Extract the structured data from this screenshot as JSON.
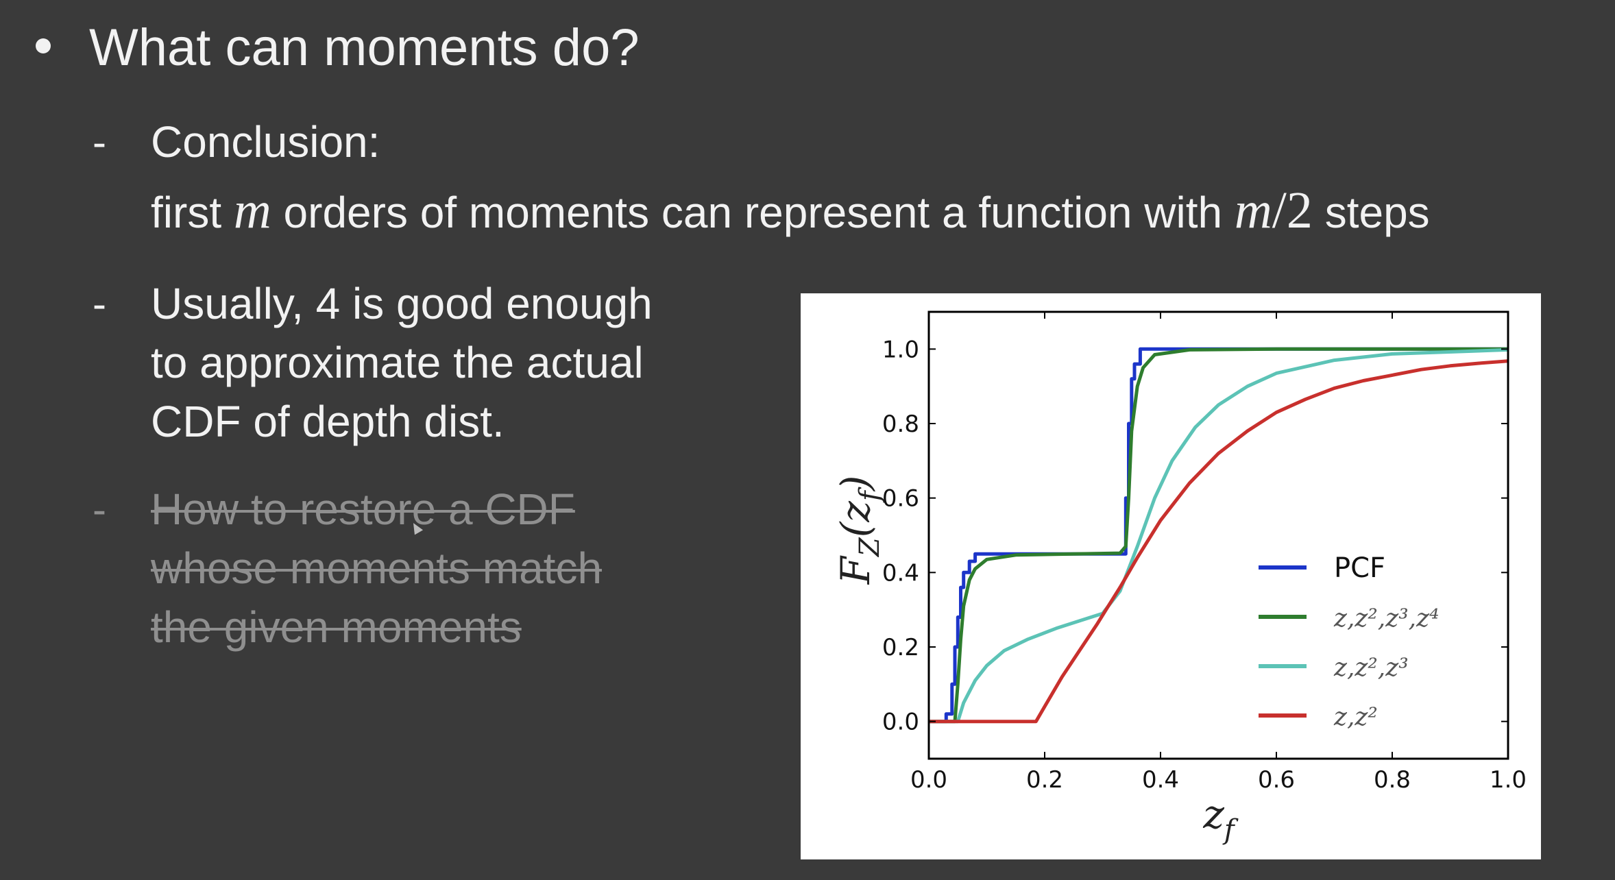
{
  "slide": {
    "title": "What can moments do?",
    "items": [
      {
        "dash": "-",
        "line1": "Conclusion:",
        "line2_parts": [
          "first ",
          "m",
          " orders of moments can represent a function with ",
          "m",
          "/",
          "2",
          " steps"
        ]
      },
      {
        "dash": "-",
        "lines": [
          "Usually, 4 is good enough",
          "to approximate the actual",
          "CDF of depth dist."
        ]
      },
      {
        "dash": "-",
        "struck": true,
        "lines": [
          "How to restore a CDF",
          "whose moments match",
          "the given moments"
        ]
      }
    ]
  },
  "chart_data": {
    "type": "line",
    "xlabel": "z_f",
    "ylabel": "F_Z(z_f)",
    "xlim": [
      0.0,
      1.0
    ],
    "ylim": [
      -0.1,
      1.1
    ],
    "xticks": [
      "0.0",
      "0.2",
      "0.4",
      "0.6",
      "0.8",
      "1.0"
    ],
    "yticks": [
      "0.0",
      "0.2",
      "0.4",
      "0.6",
      "0.8",
      "1.0"
    ],
    "legend_position": "lower-right",
    "series": [
      {
        "name": "PCF",
        "color": "#1c35c9",
        "points": [
          [
            0.0,
            0.0
          ],
          [
            0.03,
            0.0
          ],
          [
            0.03,
            0.02
          ],
          [
            0.04,
            0.02
          ],
          [
            0.04,
            0.1
          ],
          [
            0.045,
            0.1
          ],
          [
            0.045,
            0.2
          ],
          [
            0.05,
            0.2
          ],
          [
            0.05,
            0.28
          ],
          [
            0.055,
            0.28
          ],
          [
            0.055,
            0.36
          ],
          [
            0.06,
            0.36
          ],
          [
            0.06,
            0.4
          ],
          [
            0.07,
            0.4
          ],
          [
            0.07,
            0.43
          ],
          [
            0.08,
            0.43
          ],
          [
            0.08,
            0.45
          ],
          [
            0.34,
            0.45
          ],
          [
            0.34,
            0.6
          ],
          [
            0.345,
            0.6
          ],
          [
            0.345,
            0.8
          ],
          [
            0.35,
            0.8
          ],
          [
            0.35,
            0.92
          ],
          [
            0.355,
            0.92
          ],
          [
            0.355,
            0.96
          ],
          [
            0.365,
            0.96
          ],
          [
            0.365,
            1.0
          ],
          [
            1.0,
            1.0
          ]
        ]
      },
      {
        "name": "z,z²,z³,z⁴",
        "color": "#2e7d2e",
        "points": [
          [
            0.0,
            0.0
          ],
          [
            0.045,
            0.0
          ],
          [
            0.05,
            0.1
          ],
          [
            0.055,
            0.22
          ],
          [
            0.06,
            0.31
          ],
          [
            0.07,
            0.38
          ],
          [
            0.08,
            0.41
          ],
          [
            0.1,
            0.435
          ],
          [
            0.15,
            0.447
          ],
          [
            0.25,
            0.45
          ],
          [
            0.33,
            0.452
          ],
          [
            0.34,
            0.47
          ],
          [
            0.345,
            0.6
          ],
          [
            0.35,
            0.78
          ],
          [
            0.36,
            0.9
          ],
          [
            0.37,
            0.95
          ],
          [
            0.39,
            0.985
          ],
          [
            0.45,
            0.998
          ],
          [
            0.6,
            1.0
          ],
          [
            1.0,
            1.0
          ]
        ]
      },
      {
        "name": "z,z²,z³",
        "color": "#5cc3b6",
        "points": [
          [
            0.0,
            0.0
          ],
          [
            0.05,
            0.0
          ],
          [
            0.06,
            0.05
          ],
          [
            0.08,
            0.11
          ],
          [
            0.1,
            0.15
          ],
          [
            0.13,
            0.19
          ],
          [
            0.17,
            0.22
          ],
          [
            0.22,
            0.25
          ],
          [
            0.28,
            0.28
          ],
          [
            0.3,
            0.29
          ],
          [
            0.33,
            0.35
          ],
          [
            0.36,
            0.47
          ],
          [
            0.39,
            0.6
          ],
          [
            0.42,
            0.7
          ],
          [
            0.46,
            0.79
          ],
          [
            0.5,
            0.85
          ],
          [
            0.55,
            0.9
          ],
          [
            0.6,
            0.935
          ],
          [
            0.7,
            0.97
          ],
          [
            0.8,
            0.987
          ],
          [
            1.0,
            0.998
          ]
        ]
      },
      {
        "name": "z,z²",
        "color": "#c8302d",
        "points": [
          [
            0.0,
            0.0
          ],
          [
            0.185,
            0.0
          ],
          [
            0.2,
            0.04
          ],
          [
            0.23,
            0.12
          ],
          [
            0.26,
            0.19
          ],
          [
            0.29,
            0.26
          ],
          [
            0.31,
            0.31
          ],
          [
            0.33,
            0.36
          ],
          [
            0.36,
            0.44
          ],
          [
            0.4,
            0.54
          ],
          [
            0.45,
            0.64
          ],
          [
            0.5,
            0.72
          ],
          [
            0.55,
            0.78
          ],
          [
            0.6,
            0.83
          ],
          [
            0.65,
            0.865
          ],
          [
            0.7,
            0.895
          ],
          [
            0.75,
            0.915
          ],
          [
            0.8,
            0.93
          ],
          [
            0.85,
            0.945
          ],
          [
            0.9,
            0.955
          ],
          [
            0.95,
            0.962
          ],
          [
            1.0,
            0.968
          ]
        ]
      }
    ]
  }
}
